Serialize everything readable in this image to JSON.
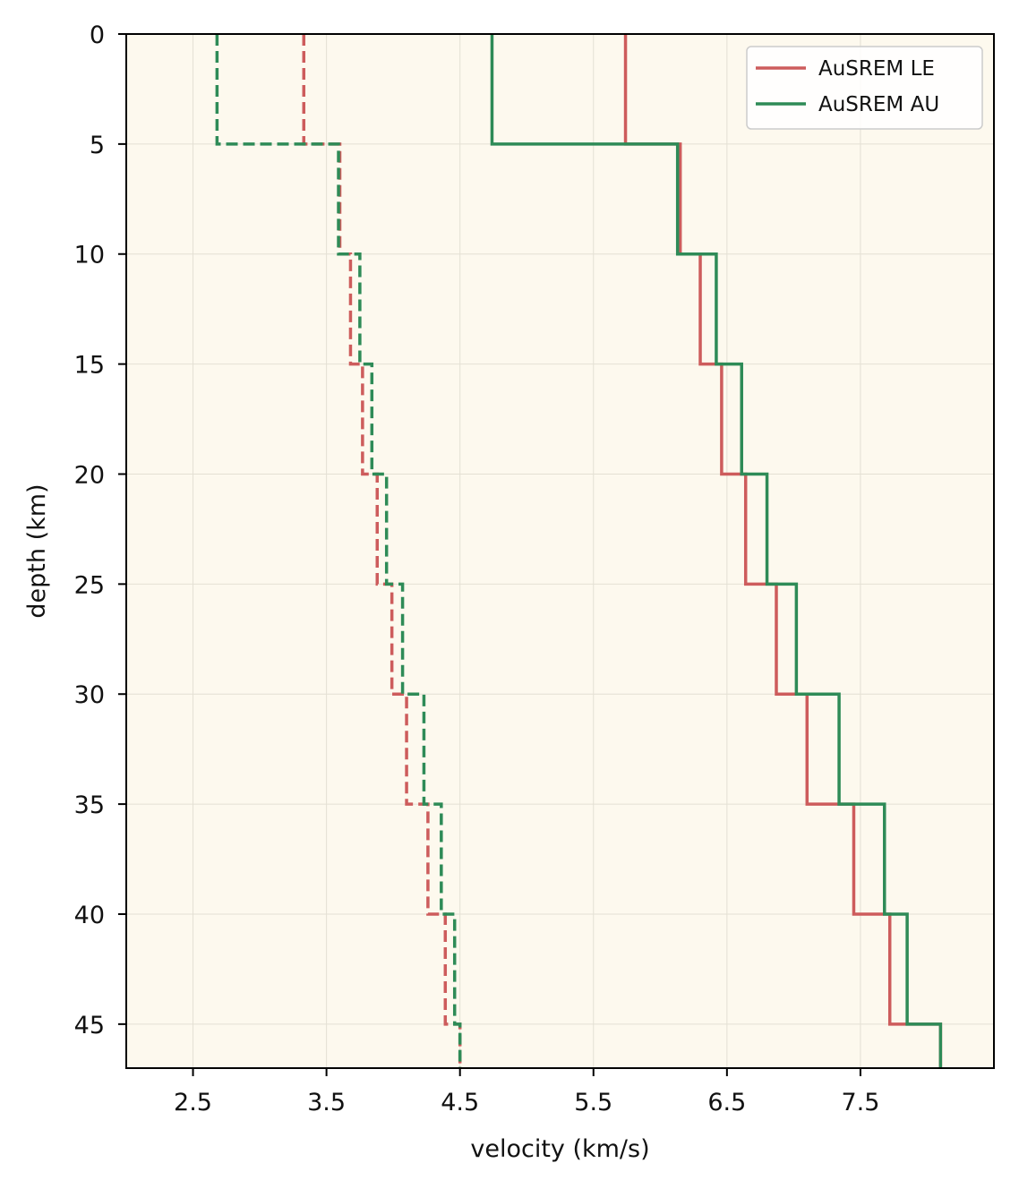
{
  "chart_data": {
    "type": "line",
    "subtype": "step-profile",
    "title": "",
    "xlabel": "velocity (km/s)",
    "ylabel": "depth (km)",
    "xlim": [
      2.0,
      8.5
    ],
    "ylim": [
      47,
      0
    ],
    "y_inverted": true,
    "grid": true,
    "legend_position": "top-right",
    "x_ticks": [
      2.5,
      3.5,
      4.5,
      5.5,
      6.5,
      7.5
    ],
    "x_tick_labels": [
      "2.5",
      "3.5",
      "4.5",
      "5.5",
      "6.5",
      "7.5"
    ],
    "y_ticks": [
      0,
      5,
      10,
      15,
      20,
      25,
      30,
      35,
      40,
      45
    ],
    "y_tick_labels": [
      "0",
      "5",
      "10",
      "15",
      "20",
      "25",
      "30",
      "35",
      "40",
      "45"
    ],
    "legend": [
      {
        "name": "AuSREM LE",
        "color": "#cd5c5c"
      },
      {
        "name": "AuSREM AU",
        "color": "#2e8b57"
      }
    ],
    "series": [
      {
        "name": "AuSREM LE",
        "kind": "Vp",
        "style": "solid",
        "color": "#cd5c5c",
        "depths": [
          0,
          5,
          10,
          15,
          20,
          25,
          30,
          35,
          40,
          45,
          47
        ],
        "values": [
          5.74,
          6.15,
          6.3,
          6.46,
          6.64,
          6.87,
          7.1,
          7.45,
          7.72,
          8.1
        ]
      },
      {
        "name": "AuSREM AU",
        "kind": "Vp",
        "style": "solid",
        "color": "#2e8b57",
        "depths": [
          0,
          5,
          10,
          15,
          20,
          25,
          30,
          35,
          40,
          45,
          47
        ],
        "values": [
          4.74,
          6.13,
          6.42,
          6.61,
          6.8,
          7.02,
          7.34,
          7.68,
          7.85,
          8.1
        ]
      },
      {
        "name": "AuSREM LE",
        "kind": "Vs",
        "style": "dashed",
        "color": "#cd5c5c",
        "depths": [
          0,
          5,
          10,
          15,
          20,
          25,
          30,
          35,
          40,
          45,
          47
        ],
        "values": [
          3.33,
          3.6,
          3.68,
          3.77,
          3.88,
          3.99,
          4.1,
          4.26,
          4.39,
          4.5
        ]
      },
      {
        "name": "AuSREM AU",
        "kind": "Vs",
        "style": "dashed",
        "color": "#2e8b57",
        "depths": [
          0,
          5,
          10,
          15,
          20,
          25,
          30,
          35,
          40,
          45,
          47
        ],
        "values": [
          2.68,
          3.59,
          3.75,
          3.84,
          3.95,
          4.07,
          4.23,
          4.36,
          4.46,
          4.5
        ]
      }
    ]
  }
}
